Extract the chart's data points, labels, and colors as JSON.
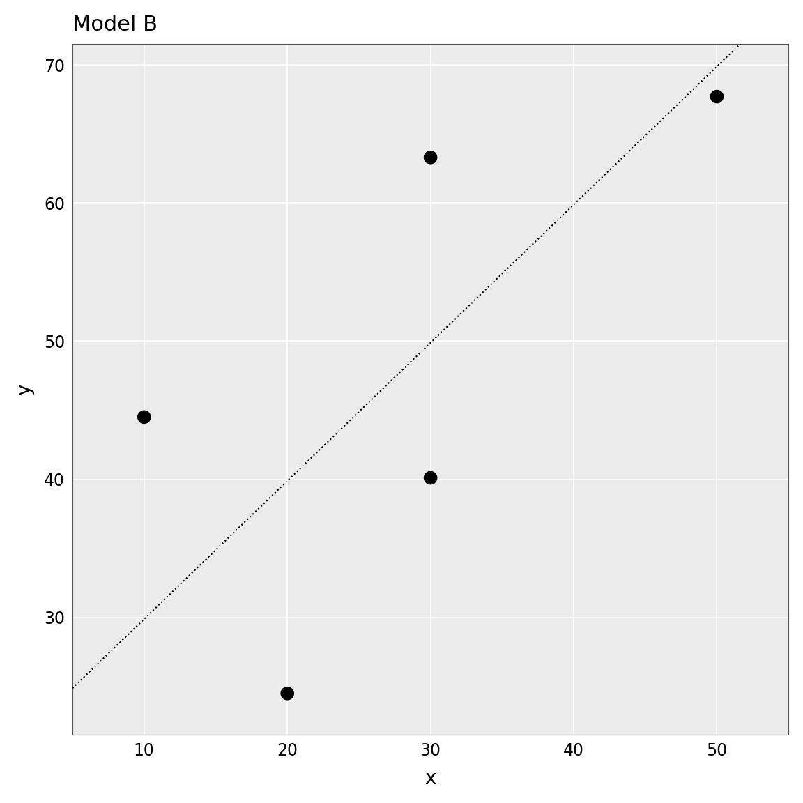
{
  "title": "Model B",
  "xlabel": "x",
  "ylabel": "y",
  "scatter_x": [
    10,
    20,
    30,
    30,
    50
  ],
  "scatter_y": [
    44.5,
    24.5,
    63.3,
    40.1,
    67.7
  ],
  "scatter_color": "#000000",
  "scatter_size": 200,
  "line_intercept": 19.88,
  "line_slope": 1.0,
  "line_color": "#000000",
  "line_style": "dotted",
  "xlim": [
    5,
    55
  ],
  "ylim": [
    21.5,
    71.5
  ],
  "xticks": [
    10,
    20,
    30,
    40,
    50
  ],
  "yticks": [
    30,
    40,
    50,
    60,
    70
  ],
  "panel_bg": "#ebebeb",
  "grid_color": "#ffffff",
  "background_color": "#ffffff",
  "title_fontsize": 22,
  "label_fontsize": 20,
  "tick_fontsize": 17
}
